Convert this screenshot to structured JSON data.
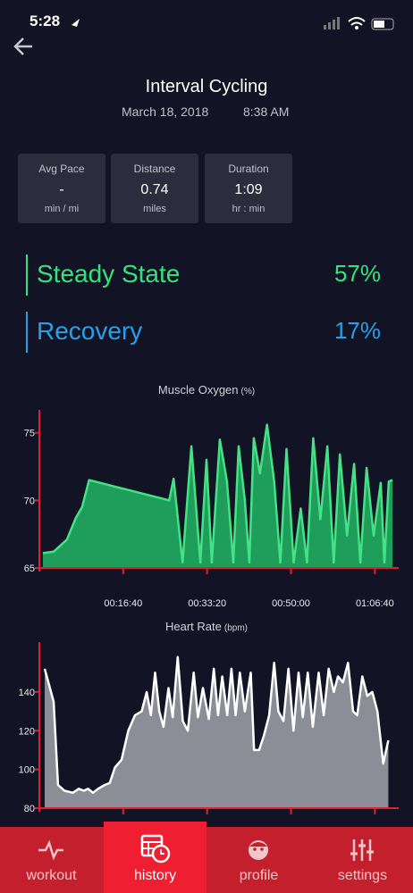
{
  "status": {
    "time": "5:28"
  },
  "header": {
    "title": "Interval Cycling",
    "date": "March 18, 2018",
    "time": "8:38 AM"
  },
  "stats": [
    {
      "label": "Avg Pace",
      "value": "-",
      "unit": "min / mi"
    },
    {
      "label": "Distance",
      "value": "0.74",
      "unit": "miles"
    },
    {
      "label": "Duration",
      "value": "1:09",
      "unit": "hr : min"
    }
  ],
  "zones": [
    {
      "name": "Steady State",
      "percent": "57%",
      "color": "#35e27e"
    },
    {
      "name": "Recovery",
      "percent": "17%",
      "color": "#2a9fe8"
    }
  ],
  "chart_data": [
    {
      "type": "area",
      "title": "Muscle Oxygen",
      "unit": "(%)",
      "color": "#1f9d5b",
      "line_color": "#45e285",
      "x": [
        42,
        170,
        329,
        435,
        509,
        594,
        1548,
        1601,
        1707,
        1813,
        1919,
        1993,
        2056,
        2152,
        2237,
        2312,
        2376,
        2450,
        2503,
        2556,
        2630,
        2714,
        2799,
        2873,
        2947,
        3032,
        3116,
        3191,
        3265,
        3350,
        3434,
        3509,
        3583,
        3668,
        3752,
        3827,
        3901,
        3986,
        4070,
        4113,
        4166,
        4210
      ],
      "values": [
        66.1,
        66.2,
        67.1,
        68.7,
        69.5,
        71.5,
        70.0,
        71.6,
        65.4,
        74.0,
        65.4,
        73.0,
        65.4,
        74.5,
        71.4,
        65.4,
        74.0,
        70.0,
        65.4,
        74.6,
        72.0,
        75.6,
        71.4,
        65.4,
        73.8,
        65.4,
        69.4,
        65.4,
        74.6,
        68.6,
        74.0,
        65.4,
        73.4,
        67.4,
        72.7,
        65.4,
        72.4,
        67.4,
        71.3,
        65.4,
        71.4,
        71.5
      ],
      "xlim": [
        0,
        4220
      ],
      "ylim": [
        65,
        76.3
      ],
      "yticks": [
        65,
        70,
        75
      ],
      "xticks": [
        {
          "value": 1000,
          "label": "00:16:40"
        },
        {
          "value": 2000,
          "label": "00:33:20"
        },
        {
          "value": 3000,
          "label": "00:50:00"
        },
        {
          "value": 4000,
          "label": "01:06:40"
        }
      ]
    },
    {
      "type": "area",
      "title": "Heart Rate",
      "unit": "(bpm)",
      "color": "#8b8e97",
      "line_color": "#ffffff",
      "x": [
        64,
        170,
        223,
        300,
        400,
        470,
        530,
        580,
        640,
        700,
        780,
        840,
        900,
        980,
        1060,
        1140,
        1220,
        1280,
        1330,
        1380,
        1430,
        1480,
        1540,
        1590,
        1650,
        1710,
        1770,
        1840,
        1890,
        1950,
        2020,
        2080,
        2130,
        2180,
        2240,
        2290,
        2340,
        2390,
        2450,
        2520,
        2560,
        2620,
        2680,
        2740,
        2800,
        2850,
        2910,
        2970,
        3030,
        3090,
        3140,
        3200,
        3260,
        3330,
        3390,
        3450,
        3510,
        3560,
        3620,
        3680,
        3740,
        3790,
        3850,
        3910,
        3970,
        4030,
        4100,
        4160
      ],
      "values": [
        152,
        135,
        92,
        89,
        88,
        90,
        89,
        90,
        88,
        90,
        92,
        93,
        101,
        105,
        120,
        128,
        130,
        140,
        128,
        150,
        130,
        122,
        142,
        127,
        158,
        125,
        120,
        150,
        127,
        142,
        126,
        152,
        128,
        148,
        128,
        152,
        128,
        150,
        130,
        150,
        110,
        110,
        118,
        128,
        155,
        130,
        125,
        152,
        120,
        150,
        127,
        150,
        122,
        150,
        128,
        152,
        140,
        148,
        145,
        155,
        130,
        128,
        148,
        138,
        140,
        130,
        103,
        115
      ],
      "xlim": [
        0,
        4220
      ],
      "ylim": [
        80,
        163
      ],
      "yticks": [
        80,
        100,
        120,
        140
      ]
    }
  ],
  "tabs": [
    "workout",
    "history",
    "profile",
    "settings"
  ],
  "selected": "history"
}
